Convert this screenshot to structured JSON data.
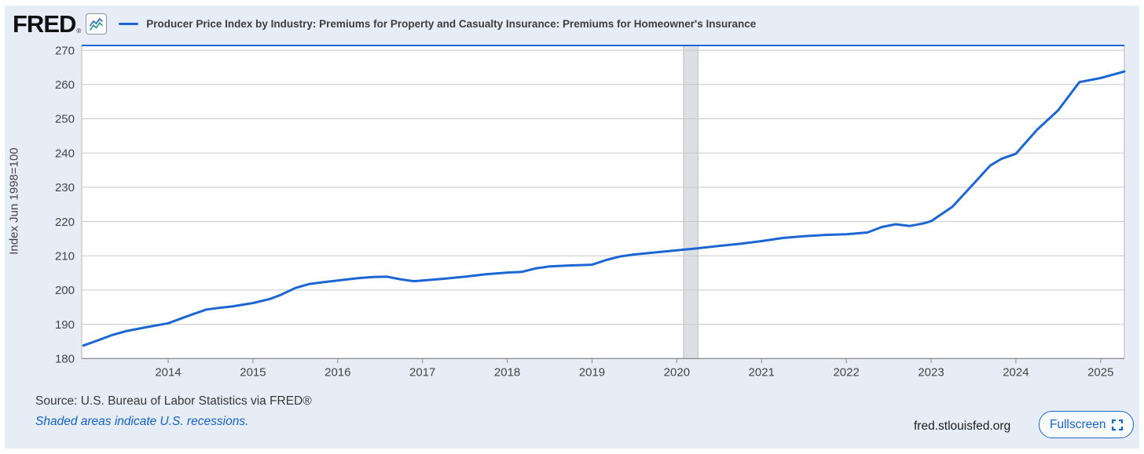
{
  "header": {
    "logo_text": "FRED",
    "registered_mark": "®",
    "legend_color": "#1b66d2"
  },
  "footer": {
    "source_text": "Source: U.S. Bureau of Labor Statistics via FRED®",
    "recession_note": "Shaded areas indicate U.S. recessions.",
    "site_url": "fred.stlouisfed.org",
    "fullscreen_label": "Fullscreen"
  },
  "chart_data": {
    "type": "line",
    "title": "Producer Price Index by Industry: Premiums for Property and Casualty Insurance: Premiums for Homeowner's Insurance",
    "xlabel": "",
    "ylabel": "Index Jun 1998=100",
    "xlim": [
      2012.98,
      2025.28
    ],
    "ylim": [
      180,
      271.4
    ],
    "x_ticks": [
      2014,
      2015,
      2016,
      2017,
      2018,
      2019,
      2020,
      2021,
      2022,
      2023,
      2024,
      2025
    ],
    "y_ticks": [
      180,
      190,
      200,
      210,
      220,
      230,
      240,
      250,
      260,
      270
    ],
    "grid": "horizontal",
    "legend_position": "top",
    "recession_bands": [
      {
        "start": 2020.08,
        "end": 2020.25
      }
    ],
    "colors": {
      "line": "#1b66d2",
      "gridline": "#c9c9c9",
      "plot_border": "#b7b7b7",
      "axis_line": "#8f8f8f",
      "top_border": "#1b66d2",
      "recession_fill": "#dcdfe3",
      "recession_edge": "#b8bcc0",
      "panel_background": "#e6edf7",
      "plot_background": "#ffffff"
    },
    "series": [
      {
        "name": "Producer Price Index by Industry: Premiums for Property and Casualty Insurance: Premiums for Homeowner's Insurance",
        "color": "#1b66d2",
        "points": [
          [
            2013.0,
            183.8
          ],
          [
            2013.17,
            185.3
          ],
          [
            2013.33,
            186.8
          ],
          [
            2013.5,
            188.0
          ],
          [
            2013.75,
            189.2
          ],
          [
            2014.0,
            190.3
          ],
          [
            2014.25,
            192.6
          ],
          [
            2014.45,
            194.3
          ],
          [
            2014.6,
            194.8
          ],
          [
            2014.75,
            195.2
          ],
          [
            2015.0,
            196.2
          ],
          [
            2015.2,
            197.4
          ],
          [
            2015.33,
            198.6
          ],
          [
            2015.5,
            200.6
          ],
          [
            2015.67,
            201.8
          ],
          [
            2015.83,
            202.3
          ],
          [
            2016.0,
            202.8
          ],
          [
            2016.25,
            203.5
          ],
          [
            2016.42,
            203.8
          ],
          [
            2016.58,
            203.9
          ],
          [
            2016.75,
            203.1
          ],
          [
            2016.9,
            202.6
          ],
          [
            2017.0,
            202.8
          ],
          [
            2017.25,
            203.3
          ],
          [
            2017.5,
            203.9
          ],
          [
            2017.75,
            204.6
          ],
          [
            2018.0,
            205.1
          ],
          [
            2018.17,
            205.3
          ],
          [
            2018.33,
            206.3
          ],
          [
            2018.5,
            206.9
          ],
          [
            2018.75,
            207.2
          ],
          [
            2019.0,
            207.4
          ],
          [
            2019.17,
            208.8
          ],
          [
            2019.33,
            209.8
          ],
          [
            2019.5,
            210.4
          ],
          [
            2019.75,
            211.0
          ],
          [
            2020.0,
            211.6
          ],
          [
            2020.25,
            212.2
          ],
          [
            2020.5,
            212.9
          ],
          [
            2020.75,
            213.5
          ],
          [
            2021.0,
            214.3
          ],
          [
            2021.25,
            215.2
          ],
          [
            2021.5,
            215.7
          ],
          [
            2021.75,
            216.1
          ],
          [
            2022.0,
            216.3
          ],
          [
            2022.25,
            216.8
          ],
          [
            2022.42,
            218.4
          ],
          [
            2022.58,
            219.2
          ],
          [
            2022.75,
            218.7
          ],
          [
            2022.92,
            219.5
          ],
          [
            2023.0,
            220.1
          ],
          [
            2023.25,
            224.3
          ],
          [
            2023.5,
            231.0
          ],
          [
            2023.7,
            236.4
          ],
          [
            2023.83,
            238.3
          ],
          [
            2024.0,
            239.8
          ],
          [
            2024.25,
            246.8
          ],
          [
            2024.5,
            252.5
          ],
          [
            2024.75,
            260.7
          ],
          [
            2025.0,
            261.9
          ],
          [
            2025.28,
            263.8
          ]
        ]
      }
    ]
  }
}
